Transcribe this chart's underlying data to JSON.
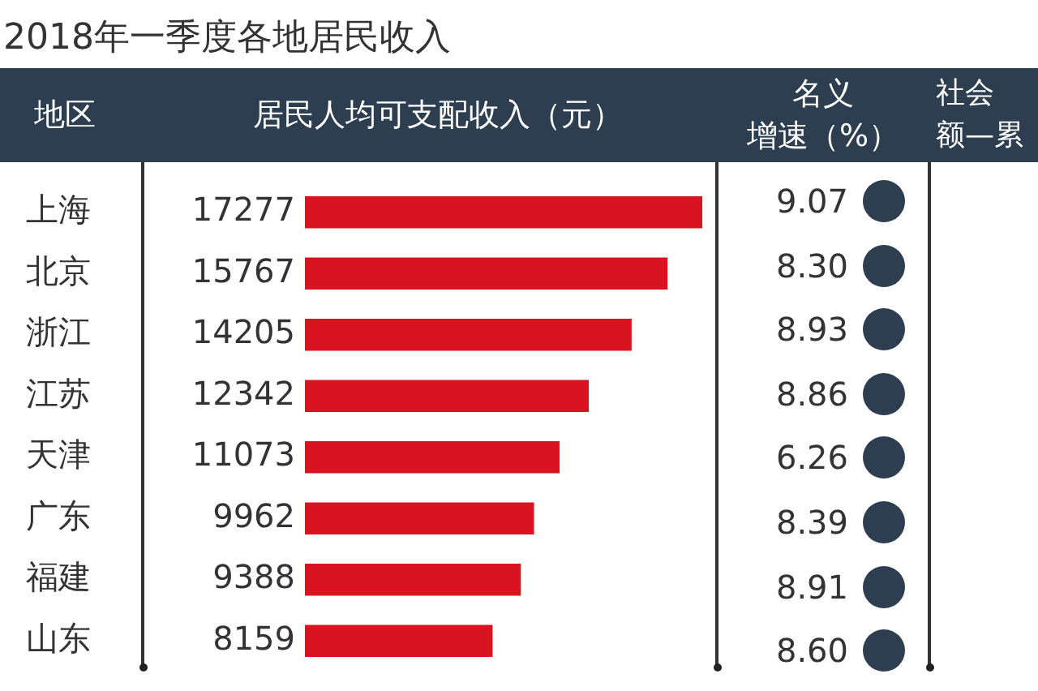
{
  "chart_data": [
    {
      "type": "bar",
      "orientation": "horizontal",
      "title": "2018年一季度各地居民收入",
      "xlabel": "居民人均可支配收入（元）",
      "ylabel": "地区",
      "categories": [
        "上海",
        "北京",
        "浙江",
        "江苏",
        "天津",
        "广东",
        "福建",
        "山东"
      ],
      "values": [
        17277,
        15767,
        14205,
        12342,
        11073,
        9962,
        9388,
        8159
      ],
      "color": "#d7141f",
      "xlim": [
        0,
        17277
      ],
      "tick_labels": "y",
      "data_labels": true
    },
    {
      "type": "other",
      "title": "名义增速（%）",
      "values": [
        9.07,
        8.3,
        8.93,
        8.86,
        6.26,
        8.39,
        8.91,
        8.6
      ],
      "value_labels": [
        "9.07",
        "8.30",
        "8.93",
        "8.86",
        "6.26",
        "8.39",
        "8.91",
        "8.60"
      ]
    },
    {
      "type": "other",
      "title": "社会额—累"
    }
  ]
}
